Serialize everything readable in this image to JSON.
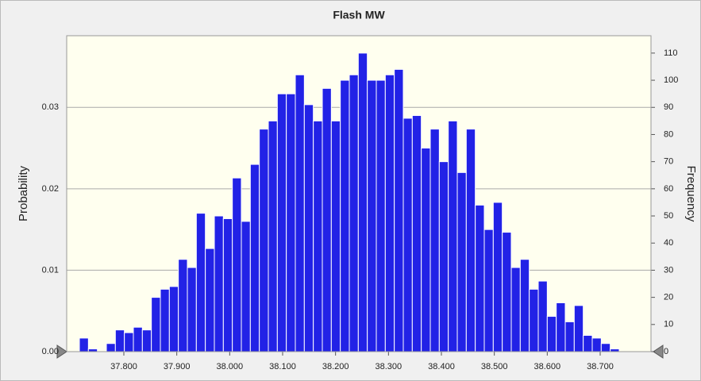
{
  "chart_data": {
    "type": "histogram",
    "title": "Flash MW",
    "y_label": "Probability",
    "y2_label": "Frequency",
    "bins": [
      37.716,
      37.733,
      37.75,
      37.767,
      37.784,
      37.801,
      37.818,
      37.835,
      37.852,
      37.869,
      37.886,
      37.903,
      37.92,
      37.937,
      37.954,
      37.971,
      37.988,
      38.005,
      38.022,
      38.039,
      38.056,
      38.073,
      38.09,
      38.107,
      38.124,
      38.141,
      38.158,
      38.175,
      38.192,
      38.209,
      38.226,
      38.243,
      38.26,
      38.277,
      38.294,
      38.311,
      38.328,
      38.345,
      38.362,
      38.379,
      38.396,
      38.413,
      38.43,
      38.447,
      38.464,
      38.481,
      38.498,
      38.515,
      38.532,
      38.549,
      38.566,
      38.583,
      38.6,
      38.617,
      38.634,
      38.651,
      38.668,
      38.685,
      38.702,
      38.719,
      38.736
    ],
    "series": [
      {
        "name": "Frequency",
        "color": "#2222e6",
        "axis": "y2",
        "values": [
          5,
          1,
          0,
          3,
          8,
          7,
          9,
          8,
          20,
          23,
          24,
          34,
          31,
          51,
          38,
          50,
          49,
          64,
          48,
          69,
          82,
          85,
          95,
          95,
          102,
          91,
          85,
          97,
          85,
          100,
          102,
          110,
          100,
          100,
          102,
          104,
          86,
          87,
          75,
          82,
          70,
          85,
          66,
          82,
          54,
          45,
          55,
          44,
          31,
          34,
          23,
          26,
          13,
          18,
          11,
          17,
          6,
          5,
          3,
          1
        ]
      }
    ],
    "xlim": [
      37.692,
      38.796
    ],
    "xticks": [
      {
        "value": 37.8,
        "label": "37.800"
      },
      {
        "value": 37.9,
        "label": "37.900"
      },
      {
        "value": 38.0,
        "label": "38.000"
      },
      {
        "value": 38.1,
        "label": "38.100"
      },
      {
        "value": 38.2,
        "label": "38.200"
      },
      {
        "value": 38.3,
        "label": "38.300"
      },
      {
        "value": 38.4,
        "label": "38.400"
      },
      {
        "value": 38.5,
        "label": "38.500"
      },
      {
        "value": 38.6,
        "label": "38.600"
      },
      {
        "value": 38.7,
        "label": "38.700"
      }
    ],
    "ylim": [
      0,
      0.0388
    ],
    "yticks": [
      {
        "value": 0,
        "label": "0.00"
      },
      0.01,
      0.02,
      0.03
    ],
    "y2lim": [
      0,
      116.4
    ],
    "y2ticks": [
      0,
      10,
      20,
      30,
      40,
      50,
      60,
      70,
      80,
      90,
      100,
      110
    ],
    "grid": true
  }
}
